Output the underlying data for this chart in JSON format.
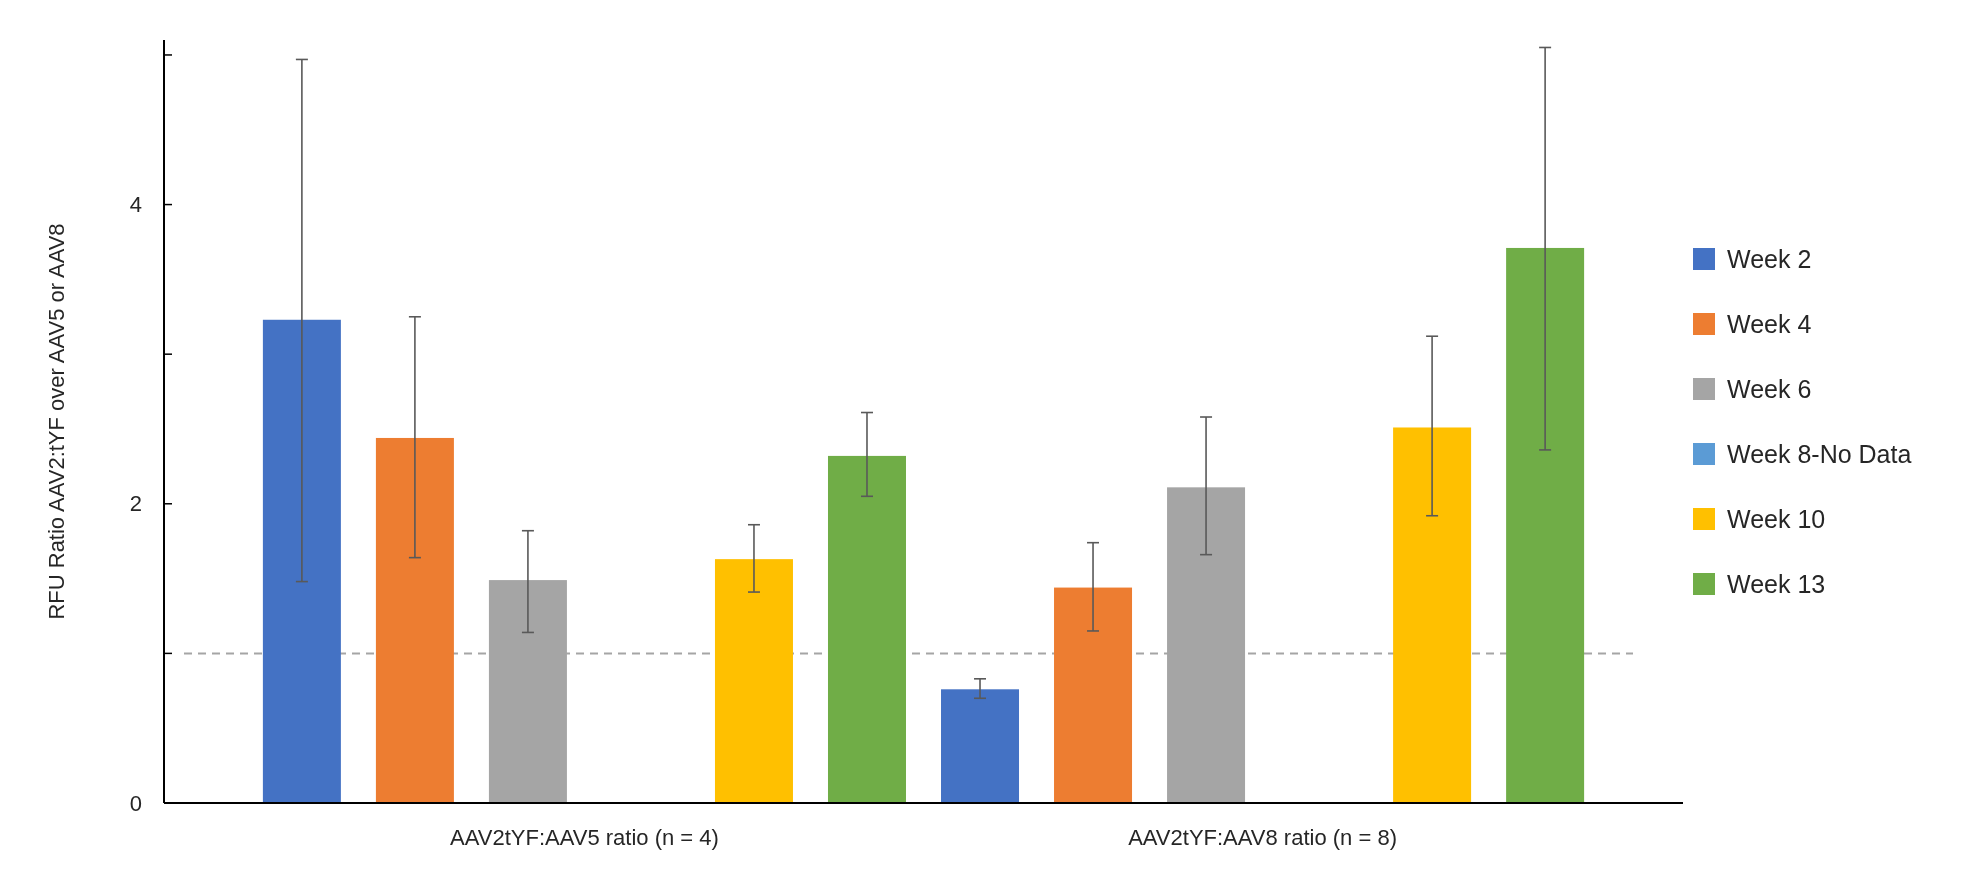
{
  "chart_data": {
    "type": "bar",
    "ylabel": "RFU Ratio AAV2:tYF over AAV5 or AAV8",
    "categories": [
      "AAV2tYF:AAV5 ratio (n = 4)",
      "AAV2tYF:AAV8 ratio (n = 8)"
    ],
    "series": [
      {
        "name": "Week 2",
        "color": "#4472c4",
        "values": [
          3.23,
          0.76
        ],
        "errors": [
          [
            1.48,
            4.97
          ],
          [
            0.7,
            0.83
          ]
        ]
      },
      {
        "name": "Week 4",
        "color": "#ed7d31",
        "values": [
          2.44,
          1.44
        ],
        "errors": [
          [
            1.64,
            3.25
          ],
          [
            1.15,
            1.74
          ]
        ]
      },
      {
        "name": "Week 6",
        "color": "#a5a5a5",
        "values": [
          1.49,
          2.11
        ],
        "errors": [
          [
            1.14,
            1.82
          ],
          [
            1.66,
            2.58
          ]
        ]
      },
      {
        "name": "Week 8-No Data",
        "color": "#5b9bd5",
        "values": [
          null,
          null
        ]
      },
      {
        "name": "Week 10",
        "color": "#ffc000",
        "values": [
          1.63,
          2.51
        ],
        "errors": [
          [
            1.41,
            1.86
          ],
          [
            1.92,
            3.12
          ]
        ]
      },
      {
        "name": "Week 13",
        "color": "#70ad47",
        "values": [
          2.32,
          3.71
        ],
        "errors": [
          [
            2.05,
            2.61
          ],
          [
            2.36,
            5.05
          ]
        ]
      }
    ],
    "ylim": [
      0,
      5.1
    ],
    "yticks": [
      0,
      {
        "value": 1,
        "label": null
      },
      2,
      {
        "value": 3,
        "label": null
      },
      4,
      {
        "value": 5,
        "label": null
      }
    ],
    "ref_lines": [
      {
        "axis": "y",
        "value": 1,
        "color": "#a5a5a5",
        "line_style": "dashed"
      }
    ],
    "grid": false,
    "legend": "right"
  }
}
